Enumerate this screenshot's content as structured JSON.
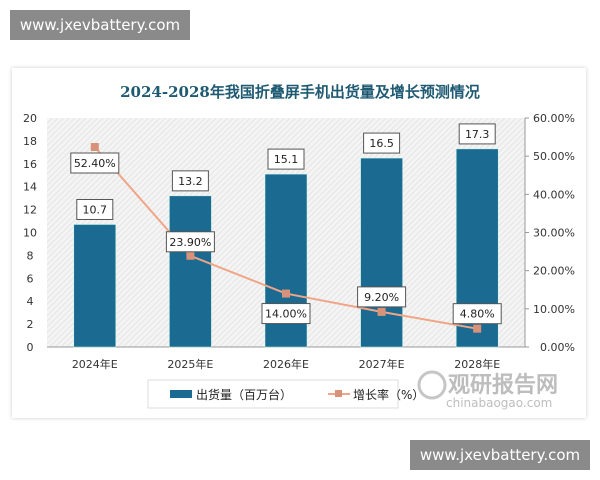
{
  "watermark_top": "www.jxevbattery.com",
  "watermark_bottom": "www.jxevbattery.com",
  "logo": {
    "cn": "观研报告网",
    "en": "chinabaogao.com"
  },
  "chart_data": {
    "type": "bar",
    "title": "2024-2028年我国折叠屏手机出货量及增长预测情况",
    "categories": [
      "2024年E",
      "2025年E",
      "2026年E",
      "2027年E",
      "2028年E"
    ],
    "series": [
      {
        "name": "出货量（百万台）",
        "type": "bar",
        "axis": "left",
        "values": [
          10.7,
          13.2,
          15.1,
          16.5,
          17.3
        ],
        "labels": [
          "10.7",
          "13.2",
          "15.1",
          "16.5",
          "17.3"
        ],
        "color": "#1b6a91"
      },
      {
        "name": "增长率（%）",
        "type": "line",
        "axis": "right",
        "values": [
          52.4,
          23.9,
          14.0,
          9.2,
          4.8
        ],
        "labels": [
          "52.40%",
          "23.90%",
          "14.00%",
          "9.20%",
          "4.80%"
        ],
        "color": "#f0a586"
      }
    ],
    "left_axis": {
      "ylim": [
        0,
        20
      ],
      "ticks": [
        "0",
        "2",
        "4",
        "6",
        "8",
        "10",
        "12",
        "14",
        "16",
        "18",
        "20"
      ]
    },
    "right_axis": {
      "ylim": [
        0,
        60
      ],
      "ticks": [
        "0.00%",
        "10.00%",
        "20.00%",
        "30.00%",
        "40.00%",
        "50.00%",
        "60.00%"
      ]
    },
    "legend": "bottom"
  }
}
